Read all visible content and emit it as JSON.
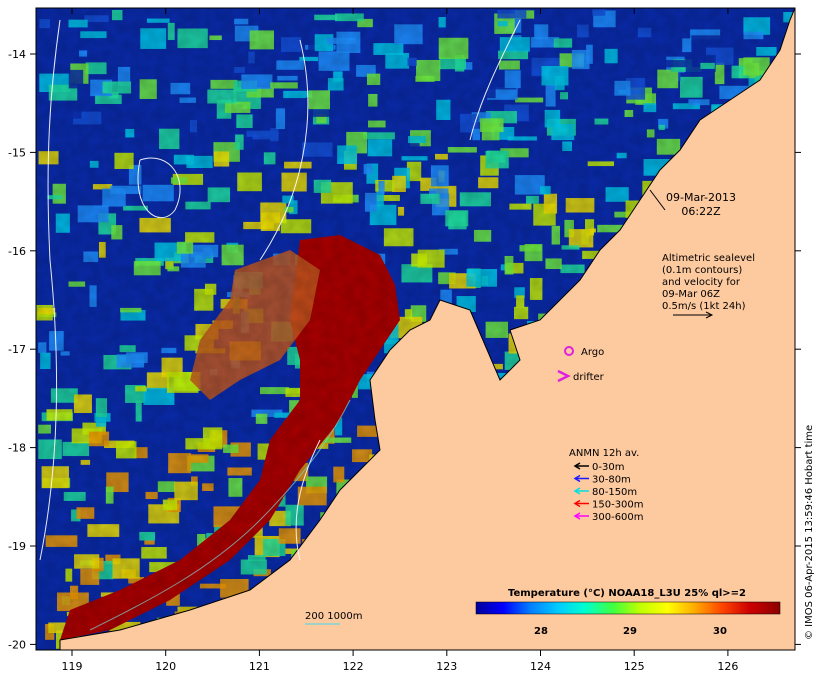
{
  "map": {
    "lon_ticks": [
      "119",
      "120",
      "121",
      "122",
      "123",
      "124",
      "125",
      "126"
    ],
    "lat_ticks": [
      "-14",
      "-15",
      "-16",
      "-17",
      "-18",
      "-19",
      "-20"
    ],
    "land_color": "#fdc99f",
    "ocean_background": "#0a2aa8"
  },
  "date": {
    "line1": "09-Mar-2013",
    "line2": "06:22Z"
  },
  "altimetry": {
    "lines": [
      "Altimetric sealevel",
      "(0.1m contours)",
      "and velocity for",
      "09-Mar 06Z",
      "0.5m/s (1kt 24h)"
    ]
  },
  "markers": {
    "argo": {
      "label": "Argo",
      "color": "#e020e0"
    },
    "drifter": {
      "label": "drifter",
      "color": "#e020e0"
    }
  },
  "anmn": {
    "title": "ANMN 12h av.",
    "items": [
      {
        "label": "0-30m",
        "color": "#000000"
      },
      {
        "label": "30-80m",
        "color": "#1a1aff"
      },
      {
        "label": "80-150m",
        "color": "#00e0e0"
      },
      {
        "label": "150-300m",
        "color": "#ff0000"
      },
      {
        "label": "300-600m",
        "color": "#ff00ff"
      }
    ]
  },
  "bathymetry": {
    "label": "200  1000m"
  },
  "colorbar": {
    "title": "Temperature (°C) NOAA18_L3U 25% ql>=2",
    "ticks": [
      "28",
      "29",
      "30"
    ],
    "colors": [
      "#000099",
      "#0000ff",
      "#0080ff",
      "#00ccff",
      "#00ffcc",
      "#40ff40",
      "#c0ff00",
      "#ffff00",
      "#ffaa00",
      "#ff4400",
      "#cc0000",
      "#8b0000"
    ]
  },
  "credit": "© IMOS 06-Apr-2015 13:59:46 Hobart time"
}
